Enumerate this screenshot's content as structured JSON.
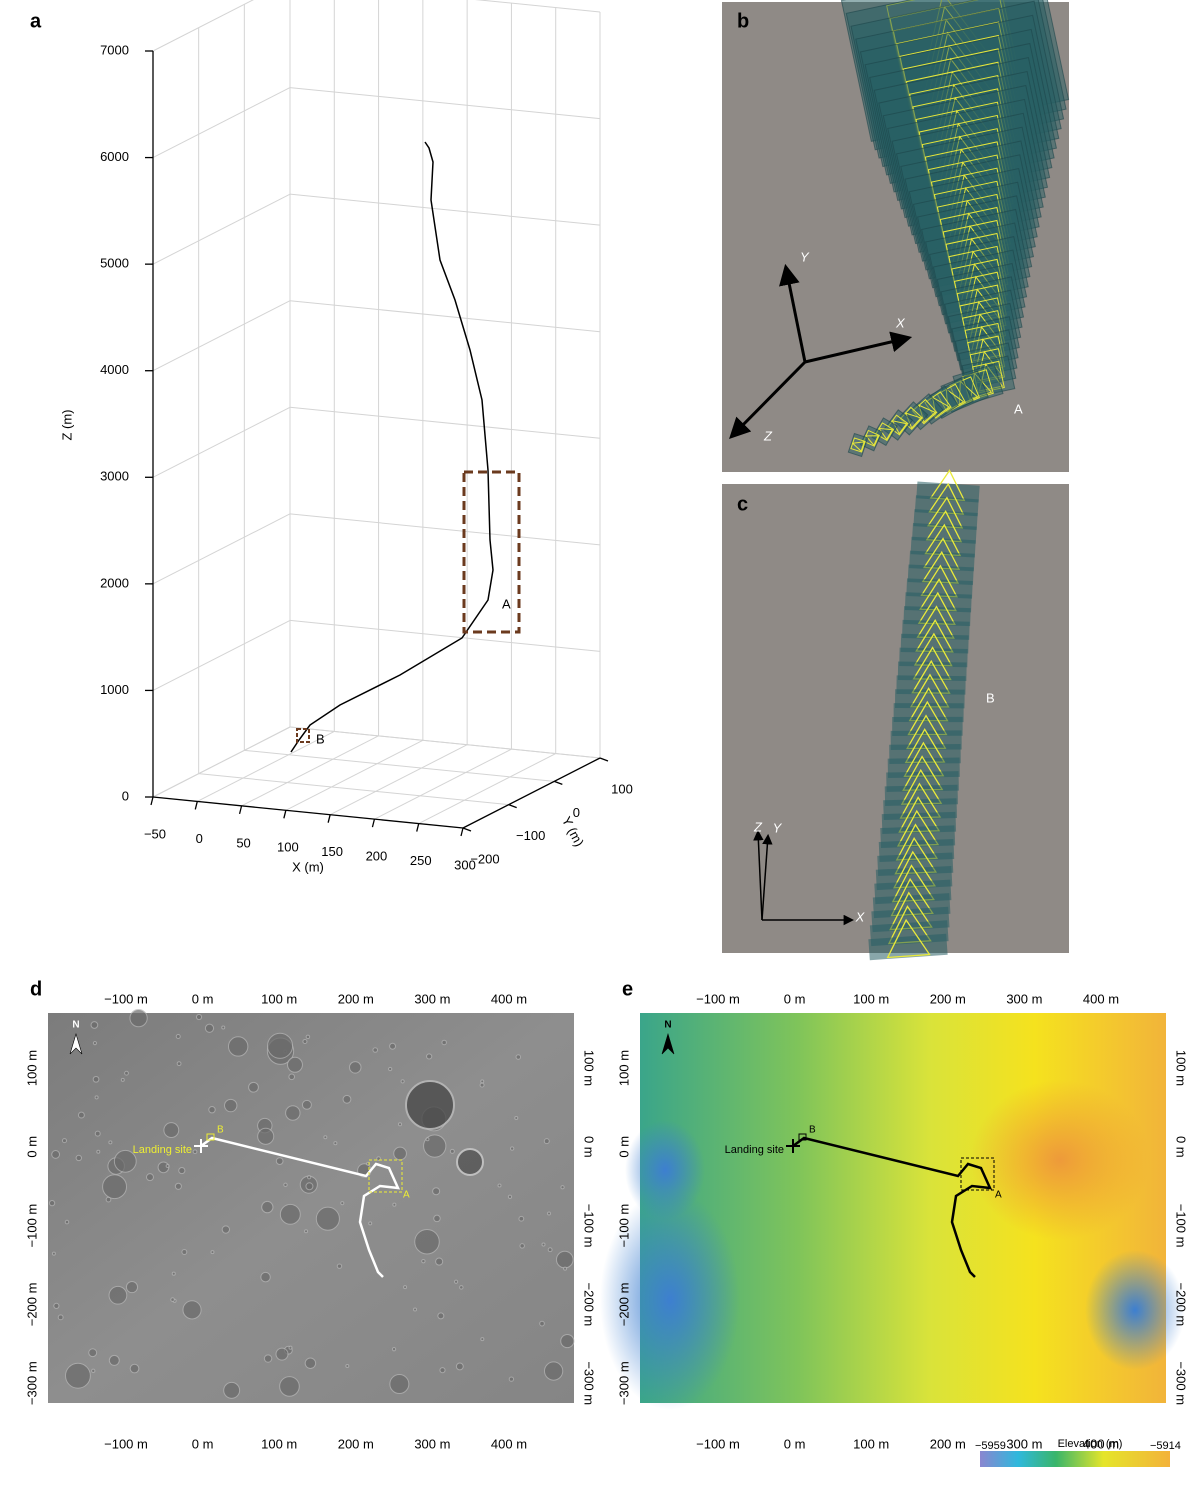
{
  "panel_a": {
    "label": "a",
    "z_title": "Z (m)",
    "x_title": "X (m)",
    "y_title": "Y (m)",
    "z_ticks": [
      "0",
      "1000",
      "2000",
      "3000",
      "4000",
      "5000",
      "6000",
      "7000"
    ],
    "x_ticks": [
      "−50",
      "0",
      "50",
      "100",
      "150",
      "200",
      "250",
      "300"
    ],
    "y_ticks": [
      "−200",
      "−100",
      "0",
      "100"
    ],
    "marker_a": "A",
    "marker_b": "B"
  },
  "panel_b": {
    "label": "b",
    "axis_y": "Y",
    "axis_x": "X",
    "axis_z": "Z",
    "marker": "A"
  },
  "panel_c": {
    "label": "c",
    "axis_z": "Z",
    "axis_y": "Y",
    "axis_x": "X",
    "marker": "B"
  },
  "panel_d": {
    "label": "d",
    "north": "N",
    "landing": "Landing site",
    "marker_a": "A",
    "marker_b": "B"
  },
  "panel_e": {
    "label": "e",
    "north": "N",
    "landing": "Landing site",
    "marker_a": "A",
    "marker_b": "B"
  },
  "map_axis": {
    "x_ticks": [
      "−100 m",
      "0 m",
      "100 m",
      "200 m",
      "300 m",
      "400 m"
    ],
    "y_ticks": [
      "100 m",
      "0 m",
      "−100 m",
      "−200 m",
      "−300 m"
    ]
  },
  "colorbar": {
    "title": "Elevation (m)",
    "min": "−5959",
    "max": "−5914"
  }
}
